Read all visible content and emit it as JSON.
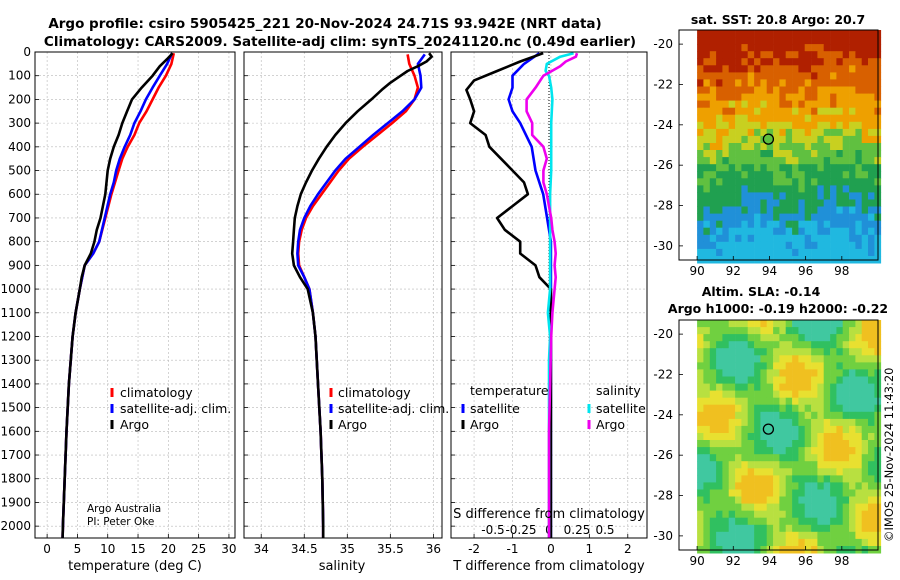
{
  "title": {
    "line1": "Argo profile: csiro 5905425_221 20-Nov-2024 24.71S 93.942E (NRT data)",
    "line2": "Climatology: CARS2009. Satellite-adj clim: synTS_20241120.nc (0.49d earlier)"
  },
  "colors": {
    "climatology": "#ff0000",
    "satellite": "#0000ff",
    "argo": "#000000",
    "sal_satellite": "#00e5ee",
    "sal_argo": "#ee00ee",
    "grid": "#b8b8b8"
  },
  "credits": {
    "org": "Argo Australia",
    "pi": "PI: Peter Oke"
  },
  "watermark": "©IMOS 25-Nov-2024 11:43:20",
  "chart_data": [
    {
      "id": "temperature",
      "type": "line",
      "xlabel": "temperature (deg C)",
      "ylabel": "",
      "xlim": [
        -2,
        31
      ],
      "ylim": [
        0,
        2050
      ],
      "xticks": [
        0,
        5,
        10,
        15,
        20,
        25,
        30
      ],
      "yticks": [
        0,
        100,
        200,
        300,
        400,
        500,
        600,
        700,
        800,
        900,
        1000,
        1100,
        1200,
        1300,
        1400,
        1500,
        1600,
        1700,
        1800,
        1900,
        2000
      ],
      "legend": [
        "climatology",
        "satellite-adj. clim.",
        "Argo"
      ],
      "series": [
        {
          "name": "climatology",
          "color": "#ff0000",
          "depth": [
            5,
            50,
            100,
            150,
            200,
            250,
            300,
            350,
            400,
            450,
            500,
            550,
            600,
            700,
            800,
            850,
            900,
            1000,
            1100,
            1200,
            1400,
            1600,
            1800,
            2000,
            2050
          ],
          "values": [
            20.9,
            20.5,
            19.6,
            18.4,
            17.4,
            16.4,
            15.2,
            14.4,
            13.3,
            12.4,
            11.8,
            11.2,
            10.6,
            9.6,
            8.6,
            7.6,
            6.2,
            5.4,
            4.7,
            4.2,
            3.6,
            3.2,
            2.9,
            2.6,
            2.55
          ]
        },
        {
          "name": "satellite-adj. clim.",
          "color": "#0000ff",
          "depth": [
            5,
            50,
            100,
            150,
            200,
            250,
            300,
            350,
            400,
            450,
            500,
            550,
            600,
            700,
            800,
            850,
            900,
            1000,
            1100,
            1200,
            1400,
            1600,
            1800,
            2000,
            2050
          ],
          "values": [
            20.6,
            19.8,
            18.6,
            17.4,
            16.3,
            15.4,
            14.4,
            13.7,
            12.8,
            12.0,
            11.4,
            11.0,
            10.4,
            9.5,
            8.6,
            7.6,
            6.2,
            5.4,
            4.7,
            4.2,
            3.6,
            3.2,
            2.9,
            2.6,
            2.55
          ]
        },
        {
          "name": "Argo",
          "color": "#000000",
          "depth": [
            5,
            30,
            60,
            100,
            150,
            200,
            250,
            300,
            350,
            400,
            450,
            500,
            550,
            600,
            650,
            700,
            750,
            800,
            850,
            900,
            950,
            1000,
            1100,
            1200,
            1400,
            1600,
            1800,
            2000,
            2050
          ],
          "values": [
            20.7,
            19.8,
            18.6,
            17.4,
            15.6,
            14.0,
            13.2,
            12.4,
            11.8,
            11.0,
            10.4,
            10.0,
            9.8,
            9.6,
            9.2,
            8.8,
            8.2,
            7.8,
            7.2,
            6.2,
            5.7,
            5.4,
            4.7,
            4.2,
            3.6,
            3.2,
            2.9,
            2.6,
            2.55
          ]
        }
      ]
    },
    {
      "id": "salinity",
      "type": "line",
      "xlabel": "salinity",
      "xlim": [
        33.8,
        36.1
      ],
      "ylim": [
        0,
        2050
      ],
      "xticks": [
        34,
        34.5,
        35,
        35.5,
        36
      ],
      "legend": [
        "climatology",
        "satellite-adj. clim.",
        "Argo"
      ],
      "series": [
        {
          "name": "climatology",
          "color": "#ff0000",
          "depth": [
            10,
            50,
            100,
            150,
            200,
            250,
            300,
            350,
            400,
            450,
            500,
            550,
            600,
            650,
            700,
            750,
            800,
            850,
            900,
            950,
            1000,
            1100,
            1200,
            1400,
            1600,
            1800,
            2000,
            2050
          ],
          "values": [
            35.7,
            35.72,
            35.78,
            35.82,
            35.78,
            35.68,
            35.52,
            35.35,
            35.18,
            35.02,
            34.9,
            34.8,
            34.7,
            34.6,
            34.52,
            34.47,
            34.44,
            34.43,
            34.44,
            34.5,
            34.56,
            34.6,
            34.63,
            34.66,
            34.69,
            34.71,
            34.72,
            34.72
          ]
        },
        {
          "name": "satellite-adj. clim.",
          "color": "#0000ff",
          "depth": [
            10,
            50,
            100,
            150,
            200,
            250,
            300,
            350,
            400,
            450,
            500,
            550,
            600,
            650,
            700,
            750,
            800,
            850,
            900,
            950,
            1000,
            1100,
            1200,
            1400,
            1600,
            1800,
            2000,
            2050
          ],
          "values": [
            35.9,
            35.82,
            35.85,
            35.86,
            35.78,
            35.64,
            35.47,
            35.3,
            35.14,
            34.98,
            34.86,
            34.76,
            34.66,
            34.57,
            34.5,
            34.45,
            34.43,
            34.42,
            34.43,
            34.5,
            34.56,
            34.6,
            34.63,
            34.66,
            34.69,
            34.71,
            34.72,
            34.72
          ]
        },
        {
          "name": "Argo",
          "color": "#000000",
          "depth": [
            5,
            20,
            40,
            60,
            80,
            100,
            130,
            160,
            200,
            250,
            300,
            350,
            400,
            450,
            500,
            550,
            600,
            650,
            700,
            750,
            800,
            850,
            900,
            950,
            1000,
            1100,
            1200,
            1400,
            1600,
            1800,
            2000,
            2050
          ],
          "values": [
            35.95,
            35.98,
            35.92,
            35.82,
            35.7,
            35.62,
            35.5,
            35.4,
            35.28,
            35.12,
            34.98,
            34.86,
            34.76,
            34.67,
            34.59,
            34.52,
            34.46,
            34.42,
            34.39,
            34.38,
            34.37,
            34.36,
            34.38,
            34.45,
            34.54,
            34.6,
            34.63,
            34.66,
            34.69,
            34.71,
            34.72,
            34.72
          ]
        }
      ]
    },
    {
      "id": "differences",
      "type": "line",
      "xlabel": "T difference from climatology",
      "xlabel_top": "S difference from climatology",
      "xlim": [
        -2.6,
        2.5
      ],
      "ylim": [
        0,
        2050
      ],
      "xticks": [
        -2,
        -1,
        0,
        1,
        2
      ],
      "sticks": [
        -0.5,
        -0.25,
        0,
        0.25,
        0.5
      ],
      "stick_labels": [
        "-0.5",
        "-0.25",
        "0",
        "0.25",
        "0.5"
      ],
      "legend_temperature": {
        "title": "temperature",
        "items": [
          "satellite",
          "Argo"
        ]
      },
      "legend_salinity": {
        "title": "salinity",
        "items": [
          "satellite",
          "Argo"
        ]
      },
      "series": [
        {
          "name": "T satellite",
          "color": "#0000ff",
          "depth": [
            5,
            50,
            100,
            150,
            200,
            250,
            300,
            400,
            500,
            600,
            700,
            800,
            900,
            1000,
            1200,
            1600,
            2050
          ],
          "values": [
            -0.3,
            -0.7,
            -1.0,
            -1.0,
            -1.1,
            -1.0,
            -0.8,
            -0.5,
            -0.4,
            -0.2,
            -0.1,
            0.0,
            0.0,
            0.0,
            0.0,
            0.0,
            0.0
          ]
        },
        {
          "name": "T Argo",
          "color": "#000000",
          "depth": [
            5,
            40,
            80,
            120,
            160,
            200,
            250,
            300,
            350,
            400,
            450,
            500,
            550,
            600,
            650,
            700,
            750,
            800,
            850,
            900,
            950,
            1000,
            1100,
            1200,
            1400,
            1600,
            2050
          ],
          "values": [
            -0.2,
            -0.8,
            -1.4,
            -2.0,
            -2.2,
            -2.1,
            -2.0,
            -2.1,
            -1.7,
            -1.6,
            -1.3,
            -1.0,
            -0.7,
            -0.6,
            -1.0,
            -1.4,
            -1.2,
            -0.8,
            -0.8,
            -0.4,
            -0.3,
            0.0,
            0.0,
            0.0,
            0.0,
            0.0,
            0.0
          ]
        },
        {
          "name": "S satellite",
          "color": "#00e5ee",
          "depth": [
            5,
            20,
            50,
            80,
            100,
            150,
            200,
            300,
            400,
            500,
            600,
            700,
            800,
            900,
            1000,
            1100,
            1200,
            1300,
            1400,
            1600,
            2050
          ],
          "values": [
            0.22,
            0.1,
            -0.02,
            -0.03,
            0.0,
            0.02,
            0.03,
            0.02,
            0.02,
            0.02,
            0.01,
            0.01,
            0.01,
            0.01,
            0.01,
            -0.01,
            0.01,
            0.0,
            0.0,
            0.0,
            0.0
          ]
        },
        {
          "name": "S Argo",
          "color": "#ee00ee",
          "depth": [
            5,
            20,
            40,
            60,
            100,
            150,
            200,
            250,
            300,
            350,
            400,
            450,
            500,
            550,
            600,
            650,
            700,
            750,
            800,
            850,
            900,
            950,
            1000,
            1100,
            1200,
            1400,
            1600,
            2050
          ],
          "values": [
            0.25,
            0.24,
            0.15,
            0.1,
            -0.05,
            -0.12,
            -0.2,
            -0.2,
            -0.15,
            -0.15,
            -0.05,
            -0.02,
            -0.05,
            -0.05,
            -0.02,
            0.0,
            0.02,
            0.03,
            0.05,
            0.06,
            0.05,
            0.06,
            0.05,
            0.03,
            0.02,
            0.01,
            0.0,
            0.0
          ]
        }
      ]
    },
    {
      "id": "sst_map",
      "type": "heatmap",
      "title": "sat. SST: 20.8 Argo: 20.7",
      "xlim": [
        89,
        100
      ],
      "ylim": [
        -30.7,
        -19.3
      ],
      "xticks": [
        90,
        92,
        94,
        96,
        98
      ],
      "yticks": [
        -20,
        -22,
        -24,
        -26,
        -28,
        -30
      ],
      "marker": {
        "lon": 93.942,
        "lat": -24.71
      }
    },
    {
      "id": "sla_map",
      "type": "heatmap",
      "title_line1": "Altim. SLA: -0.14",
      "title_line2": "Argo h1000: -0.19 h2000: -0.22",
      "xlim": [
        89,
        100
      ],
      "ylim": [
        -30.7,
        -19.3
      ],
      "xticks": [
        90,
        92,
        94,
        96,
        98
      ],
      "yticks": [
        -20,
        -22,
        -24,
        -26,
        -28,
        -30
      ],
      "marker": {
        "lon": 93.942,
        "lat": -24.71
      }
    }
  ]
}
